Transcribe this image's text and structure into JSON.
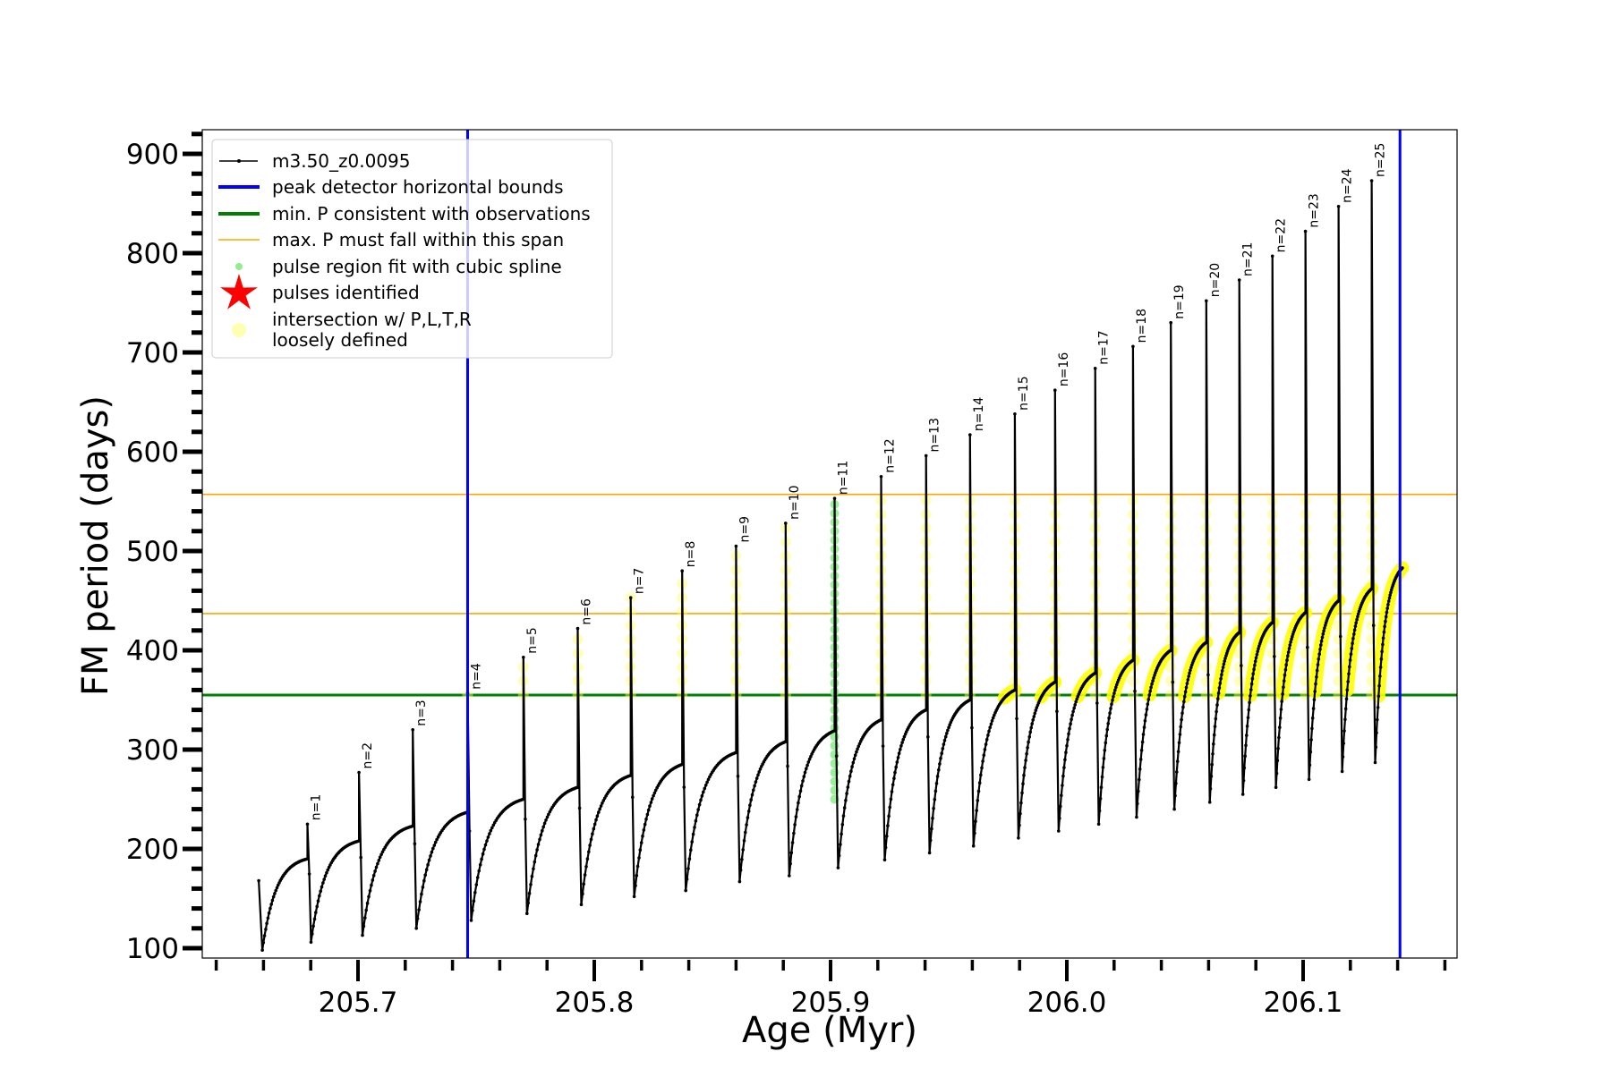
{
  "chart_data": {
    "type": "line",
    "xlabel": "Age (Myr)",
    "ylabel": "FM period (days)",
    "xlim": [
      205.635,
      206.163
    ],
    "ylim": [
      90,
      924
    ],
    "xticks": [
      205.7,
      205.8,
      205.9,
      206.0,
      206.1
    ],
    "xtick_labels": [
      "205.7",
      "205.8",
      "205.9",
      "206.0",
      "206.1"
    ],
    "yticks": [
      100,
      200,
      300,
      400,
      500,
      600,
      700,
      800,
      900
    ],
    "ytick_labels": [
      "100",
      "200",
      "300",
      "400",
      "500",
      "600",
      "700",
      "800",
      "900"
    ],
    "grid": false,
    "legend_position": "upper-left",
    "legend": [
      {
        "label": "m3.50_z0.0095",
        "marker": "line-dot",
        "color": "#000000"
      },
      {
        "label": "peak detector horizontal bounds",
        "marker": "thick-line",
        "color": "#0000ff"
      },
      {
        "label": "min. P consistent with observations",
        "marker": "thick-line",
        "color": "#008000"
      },
      {
        "label": "max. P must fall within this span",
        "marker": "thin-line",
        "color": "#ffa500"
      },
      {
        "label": "pulse region fit with cubic spline",
        "marker": "dot",
        "color": "#90ee90"
      },
      {
        "label": "pulses identified",
        "marker": "star",
        "color": "#ff0000"
      },
      {
        "label": "intersection w/ P,L,T,R\nloosely defined",
        "marker": "circle",
        "color": "#ffffb0"
      }
    ],
    "vertical_lines": {
      "color": "#0000ff",
      "x": [
        205.7464,
        206.141
      ]
    },
    "min_period_line": {
      "color": "#008000",
      "y": 355
    },
    "max_period_span": {
      "color": "#ffa500",
      "y": [
        437,
        557
      ]
    },
    "series_start": {
      "age": 205.658,
      "period": 168,
      "min_period": 98
    },
    "series_end_age": 206.142,
    "pulses": [
      {
        "label": "n=1",
        "age": 205.6786,
        "peak": 225,
        "pre_pulse": 190,
        "post_min": 106
      },
      {
        "label": "n=2",
        "age": 205.7004,
        "peak": 277,
        "pre_pulse": 208,
        "post_min": 113
      },
      {
        "label": "n=3",
        "age": 205.7232,
        "peak": 320,
        "pre_pulse": 223,
        "post_min": 120
      },
      {
        "label": "n=4",
        "age": 205.7464,
        "peak": 357,
        "pre_pulse": 237,
        "post_min": 128
      },
      {
        "label": "n=5",
        "age": 205.77,
        "peak": 393,
        "pre_pulse": 250,
        "post_min": 135
      },
      {
        "label": "n=6",
        "age": 205.793,
        "peak": 422,
        "pre_pulse": 262,
        "post_min": 144
      },
      {
        "label": "n=7",
        "age": 205.8154,
        "peak": 453,
        "pre_pulse": 274,
        "post_min": 152
      },
      {
        "label": "n=8",
        "age": 205.8372,
        "peak": 480,
        "pre_pulse": 285,
        "post_min": 158
      },
      {
        "label": "n=9",
        "age": 205.86,
        "peak": 505,
        "pre_pulse": 297,
        "post_min": 167
      },
      {
        "label": "n=10",
        "age": 205.881,
        "peak": 528,
        "pre_pulse": 308,
        "post_min": 173
      },
      {
        "label": "n=11",
        "age": 205.9017,
        "peak": 553,
        "pre_pulse": 319,
        "post_min": 181
      },
      {
        "label": "n=12",
        "age": 205.9214,
        "peak": 575,
        "pre_pulse": 330,
        "post_min": 189
      },
      {
        "label": "n=13",
        "age": 205.9404,
        "peak": 596,
        "pre_pulse": 340,
        "post_min": 196
      },
      {
        "label": "n=14",
        "age": 205.959,
        "peak": 617,
        "pre_pulse": 350,
        "post_min": 203
      },
      {
        "label": "n=15",
        "age": 205.978,
        "peak": 638,
        "pre_pulse": 360,
        "post_min": 211
      },
      {
        "label": "n=16",
        "age": 205.995,
        "peak": 662,
        "pre_pulse": 368,
        "post_min": 218
      },
      {
        "label": "n=17",
        "age": 206.012,
        "peak": 684,
        "pre_pulse": 377,
        "post_min": 225
      },
      {
        "label": "n=18",
        "age": 206.028,
        "peak": 706,
        "pre_pulse": 390,
        "post_min": 232
      },
      {
        "label": "n=19",
        "age": 206.044,
        "peak": 730,
        "pre_pulse": 400,
        "post_min": 240
      },
      {
        "label": "n=20",
        "age": 206.059,
        "peak": 752,
        "pre_pulse": 408,
        "post_min": 247
      },
      {
        "label": "n=21",
        "age": 206.073,
        "peak": 773,
        "pre_pulse": 418,
        "post_min": 255
      },
      {
        "label": "n=22",
        "age": 206.087,
        "peak": 797,
        "pre_pulse": 428,
        "post_min": 262
      },
      {
        "label": "n=23",
        "age": 206.101,
        "peak": 822,
        "pre_pulse": 438,
        "post_min": 270
      },
      {
        "label": "n=24",
        "age": 206.115,
        "peak": 847,
        "pre_pulse": 450,
        "post_min": 278
      },
      {
        "label": "n=25",
        "age": 206.129,
        "peak": 873,
        "pre_pulse": 462,
        "post_min": 287
      }
    ],
    "final_plateau": 483,
    "spline_fit_pulse": "n=11",
    "loosely_defined_threshold": 355
  }
}
